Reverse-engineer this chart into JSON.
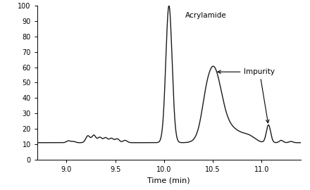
{
  "xlim": [
    8.7,
    11.4
  ],
  "ylim": [
    0,
    100
  ],
  "xticks": [
    9.0,
    9.5,
    10.0,
    10.5,
    11.0
  ],
  "yticks": [
    0,
    10,
    20,
    30,
    40,
    50,
    60,
    70,
    80,
    90,
    100
  ],
  "xlabel": "Time (min)",
  "label_acrylamide": "Acrylamide",
  "label_impurity": "Impurity",
  "line_color": "#1a1a1a",
  "line_width": 1.0,
  "background_color": "#ffffff",
  "figsize": [
    4.4,
    2.7
  ],
  "dpi": 100
}
